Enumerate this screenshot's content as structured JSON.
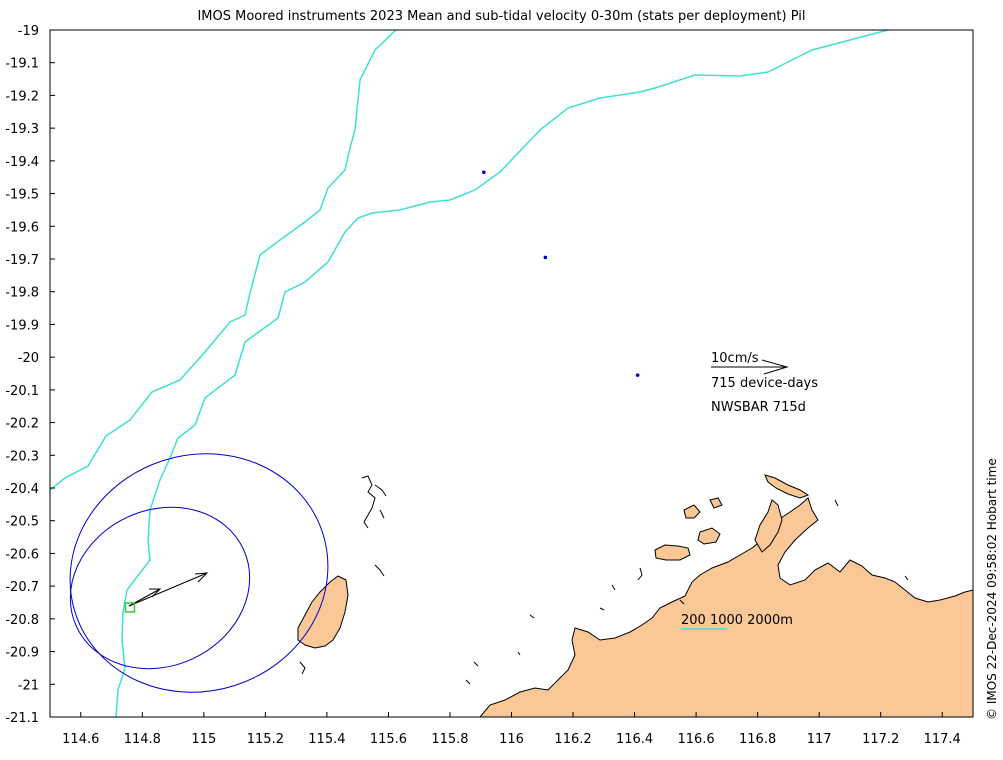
{
  "title": "IMOS Moored instruments 2023 Mean and sub-tidal velocity 0-30m (stats per deployment) Pil",
  "credit": "© IMOS 22-Dec-2024 09:58:02 Hobart time",
  "axes": {
    "lon_range": [
      114.5,
      117.5
    ],
    "lat_range": [
      -21.1,
      -19.0
    ],
    "x_ticks": [
      "114.6",
      "114.8",
      "115",
      "115.2",
      "115.4",
      "115.6",
      "115.8",
      "116",
      "116.2",
      "116.4",
      "116.6",
      "116.8",
      "117",
      "117.2",
      "117.4"
    ],
    "y_ticks": [
      "-19",
      "-19.1",
      "-19.2",
      "-19.3",
      "-19.4",
      "-19.5",
      "-19.6",
      "-19.7",
      "-19.8",
      "-19.9",
      "-20",
      "-20.1",
      "-20.2",
      "-20.3",
      "-20.4",
      "-20.5",
      "-20.6",
      "-20.7",
      "-20.8",
      "-20.9",
      "-21",
      "-21.1"
    ]
  },
  "legend": {
    "scale_label": "10cm/s",
    "device_days": "715 device-days",
    "site": "NWSBAR 715d"
  },
  "bathymetry_label": "200 1000 2000m",
  "colors": {
    "land": "#f9c896",
    "isobath": "#40e0d0",
    "ellipse": "#0000cc",
    "station": "#33cc33",
    "arrow": "#000000"
  },
  "mooring": {
    "lon": 114.76,
    "lat": -20.765
  },
  "dots": [
    {
      "lon": 115.91,
      "lat": -19.435
    },
    {
      "lon": 116.11,
      "lat": -19.695
    },
    {
      "lon": 116.41,
      "lat": -20.055
    }
  ]
}
